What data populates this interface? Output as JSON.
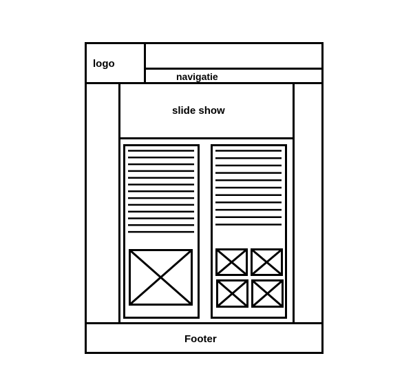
{
  "labels": {
    "logo": "logo",
    "navigation": "navigatie",
    "slideshow": "slide show",
    "footer": "Footer"
  },
  "colors": {
    "stroke": "#000000",
    "background": "#ffffff"
  },
  "columns": {
    "left": {
      "text_line_count": 13,
      "image_placeholder_count": 1
    },
    "right": {
      "text_line_count": 11,
      "image_placeholder_count": 4
    }
  }
}
